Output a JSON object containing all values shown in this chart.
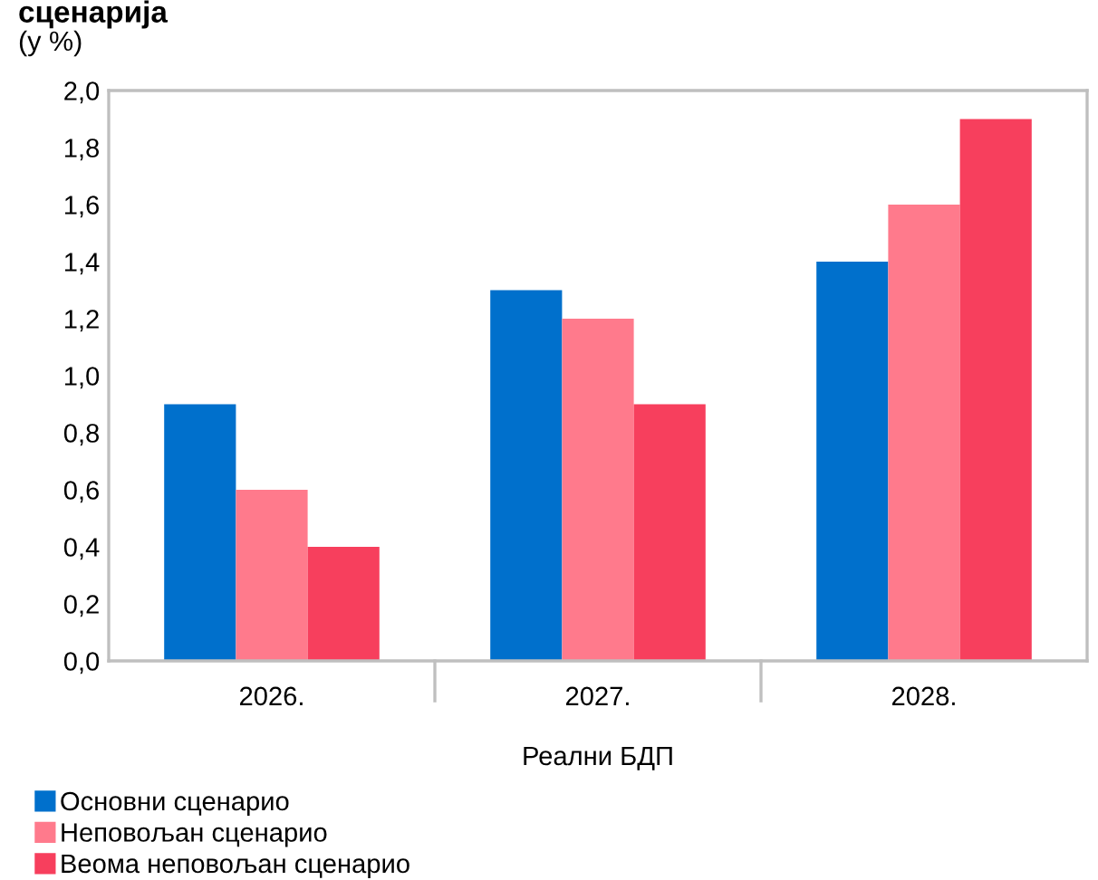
{
  "chart_data": {
    "type": "bar",
    "title": "сценарија",
    "subtitle": "(у %)",
    "xlabel": "Реални БДП",
    "categories": [
      "2026.",
      "2027.",
      "2028."
    ],
    "series": [
      {
        "name": "Основни сценарио",
        "color": "#0070cc",
        "values": [
          0.9,
          1.3,
          1.4
        ]
      },
      {
        "name": "Неповољан сценарио",
        "color": "#ff7a8c",
        "values": [
          0.6,
          1.2,
          1.6
        ]
      },
      {
        "name": "Веома неповољан сценарио",
        "color": "#f73f5d",
        "values": [
          0.4,
          0.9,
          1.9
        ]
      }
    ],
    "ylim": [
      0,
      2.0
    ],
    "yticks": [
      {
        "value": 0,
        "label": "0,0"
      },
      {
        "value": 0.2,
        "label": "0,2"
      },
      {
        "value": 0.4,
        "label": "0,4"
      },
      {
        "value": 0.6,
        "label": "0,6"
      },
      {
        "value": 0.8,
        "label": "0,8"
      },
      {
        "value": 1.0,
        "label": "1,0"
      },
      {
        "value": 1.2,
        "label": "1,2"
      },
      {
        "value": 1.4,
        "label": "1,4"
      },
      {
        "value": 1.6,
        "label": "1,6"
      },
      {
        "value": 1.8,
        "label": "1,8"
      },
      {
        "value": 2.0,
        "label": "2,0"
      }
    ],
    "grid": false,
    "legend": "bottom left"
  }
}
